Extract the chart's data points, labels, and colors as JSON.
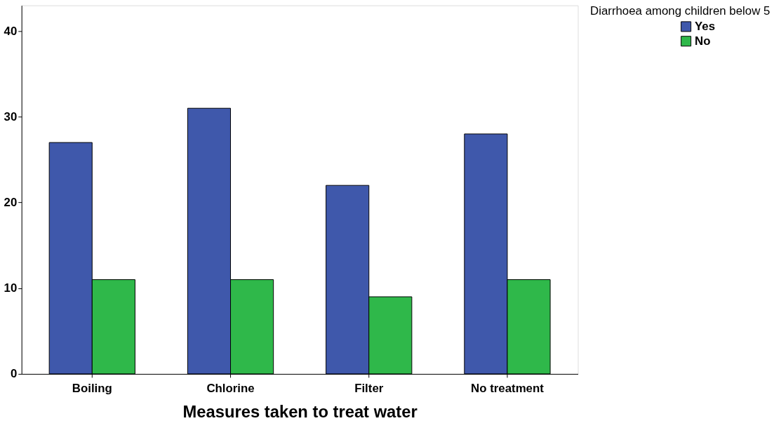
{
  "chart_data": {
    "type": "bar",
    "categories": [
      "Boiling",
      "Chlorine",
      "Filter",
      "No treatment"
    ],
    "xlabel": "Measures taken to treat water",
    "legend_title": "Diarrhoea among children below 5",
    "series": [
      {
        "name": "Yes",
        "color": "#3f58ab",
        "values": [
          27,
          31,
          22,
          28
        ]
      },
      {
        "name": "No",
        "color": "#2fb84a",
        "values": [
          11,
          11,
          9,
          11
        ]
      }
    ],
    "ylim": [
      0,
      43
    ],
    "yticks": [
      0,
      10,
      20,
      30,
      40
    ],
    "grid": false,
    "legend": "top right"
  }
}
